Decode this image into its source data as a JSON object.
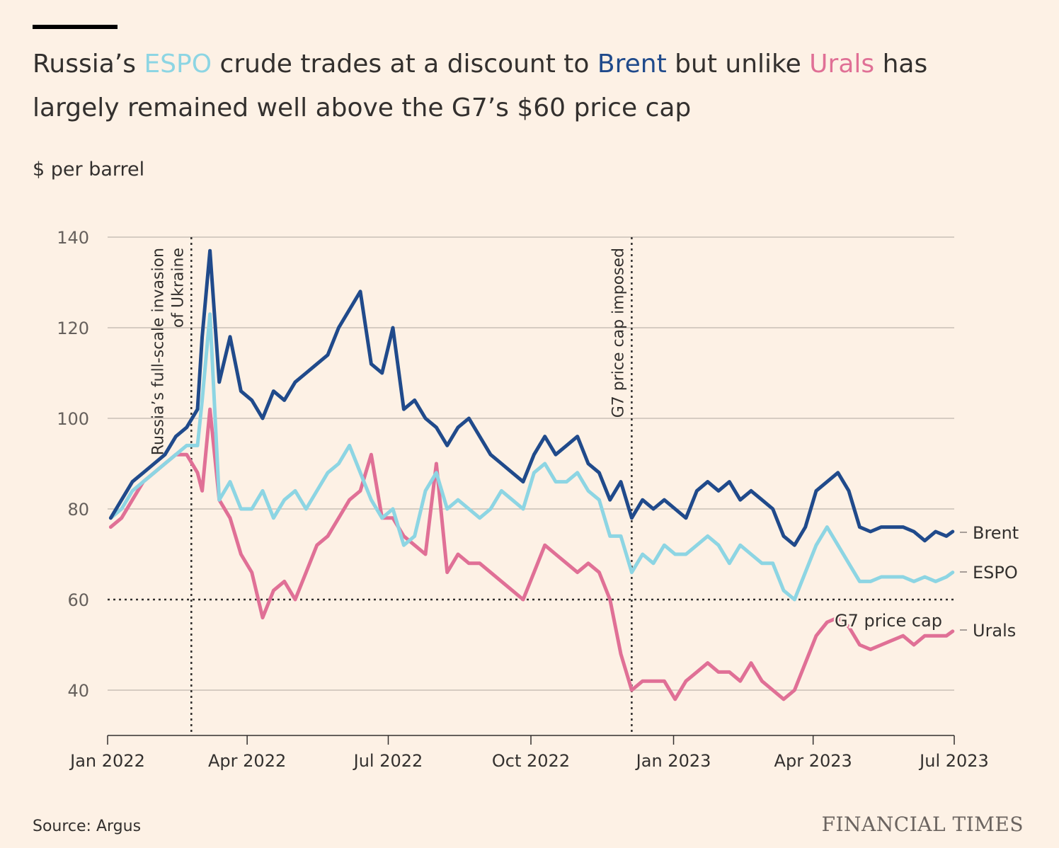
{
  "title": {
    "p1": "Russia’s ",
    "espo": "ESPO",
    "p2": " crude trades at a discount to ",
    "brent": "Brent",
    "p3": " but unlike ",
    "urals": "Urals",
    "p4": " has",
    "line2": "largely remained well above the G7’s $60 price cap"
  },
  "unit_label": "$ per barrel",
  "source": "Source: Argus",
  "brand": "FINANCIAL TIMES",
  "colors": {
    "background": "#fdf1e5",
    "brent": "#204a8b",
    "espo": "#8dd5e3",
    "urals": "#e07096",
    "text": "#33302e"
  },
  "chart_data": {
    "type": "line",
    "ylabel": "$ per barrel",
    "ylim": [
      30,
      140
    ],
    "yticks": [
      40,
      60,
      80,
      100,
      120,
      140
    ],
    "xlim": [
      "2022-01-01",
      "2023-07-01"
    ],
    "xticks": [
      {
        "date": "2022-01-01",
        "label": "Jan 2022"
      },
      {
        "date": "2022-04-01",
        "label": "Apr 2022"
      },
      {
        "date": "2022-07-01",
        "label": "Jul 2022"
      },
      {
        "date": "2022-10-01",
        "label": "Oct 2022"
      },
      {
        "date": "2023-01-01",
        "label": "Jan 2023"
      },
      {
        "date": "2023-04-01",
        "label": "Apr 2023"
      },
      {
        "date": "2023-07-01",
        "label": "Jul 2023"
      }
    ],
    "grid": true,
    "annotations": [
      {
        "date": "2022-02-24",
        "text_line1": "Russia’s full-scale invasion",
        "text_line2": "of Ukraine"
      },
      {
        "date": "2022-12-05",
        "text_line1": "G7 price cap imposed"
      }
    ],
    "reference_line": {
      "y": 60,
      "label": "G7 price cap"
    },
    "series": [
      {
        "name": "Brent",
        "x": [
          "2022-01-03",
          "2022-01-10",
          "2022-01-17",
          "2022-01-24",
          "2022-01-31",
          "2022-02-07",
          "2022-02-14",
          "2022-02-21",
          "2022-02-28",
          "2022-03-03",
          "2022-03-08",
          "2022-03-14",
          "2022-03-21",
          "2022-03-28",
          "2022-04-04",
          "2022-04-11",
          "2022-04-18",
          "2022-04-25",
          "2022-05-02",
          "2022-05-09",
          "2022-05-16",
          "2022-05-23",
          "2022-05-30",
          "2022-06-06",
          "2022-06-13",
          "2022-06-20",
          "2022-06-27",
          "2022-07-04",
          "2022-07-11",
          "2022-07-18",
          "2022-07-25",
          "2022-08-01",
          "2022-08-08",
          "2022-08-15",
          "2022-08-22",
          "2022-08-29",
          "2022-09-05",
          "2022-09-12",
          "2022-09-19",
          "2022-09-26",
          "2022-10-03",
          "2022-10-10",
          "2022-10-17",
          "2022-10-24",
          "2022-10-31",
          "2022-11-07",
          "2022-11-14",
          "2022-11-21",
          "2022-11-28",
          "2022-12-05",
          "2022-12-12",
          "2022-12-19",
          "2022-12-26",
          "2023-01-02",
          "2023-01-09",
          "2023-01-16",
          "2023-01-23",
          "2023-01-30",
          "2023-02-06",
          "2023-02-13",
          "2023-02-20",
          "2023-02-27",
          "2023-03-06",
          "2023-03-13",
          "2023-03-20",
          "2023-03-27",
          "2023-04-03",
          "2023-04-10",
          "2023-04-17",
          "2023-04-24",
          "2023-05-01",
          "2023-05-08",
          "2023-05-15",
          "2023-05-22",
          "2023-05-29",
          "2023-06-05",
          "2023-06-12",
          "2023-06-19",
          "2023-06-26",
          "2023-06-30"
        ],
        "values": [
          78,
          82,
          86,
          88,
          90,
          92,
          96,
          98,
          102,
          118,
          137,
          108,
          118,
          106,
          104,
          100,
          106,
          104,
          108,
          110,
          112,
          114,
          120,
          124,
          128,
          112,
          110,
          120,
          102,
          104,
          100,
          98,
          94,
          98,
          100,
          96,
          92,
          90,
          88,
          86,
          92,
          96,
          92,
          94,
          96,
          90,
          88,
          82,
          86,
          78,
          82,
          80,
          82,
          80,
          78,
          84,
          86,
          84,
          86,
          82,
          84,
          82,
          80,
          74,
          72,
          76,
          84,
          86,
          88,
          84,
          76,
          75,
          76,
          76,
          76,
          75,
          73,
          75,
          74,
          75
        ]
      },
      {
        "name": "ESPO",
        "x": [
          "2022-01-03",
          "2022-01-10",
          "2022-01-17",
          "2022-01-24",
          "2022-01-31",
          "2022-02-07",
          "2022-02-14",
          "2022-02-21",
          "2022-02-28",
          "2022-03-03",
          "2022-03-08",
          "2022-03-14",
          "2022-03-21",
          "2022-03-28",
          "2022-04-04",
          "2022-04-11",
          "2022-04-18",
          "2022-04-25",
          "2022-05-02",
          "2022-05-09",
          "2022-05-16",
          "2022-05-23",
          "2022-05-30",
          "2022-06-06",
          "2022-06-13",
          "2022-06-20",
          "2022-06-27",
          "2022-07-04",
          "2022-07-11",
          "2022-07-18",
          "2022-07-25",
          "2022-08-01",
          "2022-08-08",
          "2022-08-15",
          "2022-08-22",
          "2022-08-29",
          "2022-09-05",
          "2022-09-12",
          "2022-09-19",
          "2022-09-26",
          "2022-10-03",
          "2022-10-10",
          "2022-10-17",
          "2022-10-24",
          "2022-10-31",
          "2022-11-07",
          "2022-11-14",
          "2022-11-21",
          "2022-11-28",
          "2022-12-05",
          "2022-12-12",
          "2022-12-19",
          "2022-12-26",
          "2023-01-02",
          "2023-01-09",
          "2023-01-16",
          "2023-01-23",
          "2023-01-30",
          "2023-02-06",
          "2023-02-13",
          "2023-02-20",
          "2023-02-27",
          "2023-03-06",
          "2023-03-13",
          "2023-03-20",
          "2023-03-27",
          "2023-04-03",
          "2023-04-10",
          "2023-04-17",
          "2023-04-24",
          "2023-05-01",
          "2023-05-08",
          "2023-05-15",
          "2023-05-22",
          "2023-05-29",
          "2023-06-05",
          "2023-06-12",
          "2023-06-19",
          "2023-06-26",
          "2023-06-30"
        ],
        "values": [
          78,
          80,
          84,
          86,
          88,
          90,
          92,
          94,
          94,
          104,
          123,
          82,
          86,
          80,
          80,
          84,
          78,
          82,
          84,
          80,
          84,
          88,
          90,
          94,
          88,
          82,
          78,
          80,
          72,
          74,
          84,
          88,
          80,
          82,
          80,
          78,
          80,
          84,
          82,
          80,
          88,
          90,
          86,
          86,
          88,
          84,
          82,
          74,
          74,
          66,
          70,
          68,
          72,
          70,
          70,
          72,
          74,
          72,
          68,
          72,
          70,
          68,
          68,
          62,
          60,
          66,
          72,
          76,
          72,
          68,
          64,
          64,
          65,
          65,
          65,
          64,
          65,
          64,
          65,
          66
        ]
      },
      {
        "name": "Urals",
        "x": [
          "2022-01-03",
          "2022-01-10",
          "2022-01-17",
          "2022-01-24",
          "2022-01-31",
          "2022-02-07",
          "2022-02-14",
          "2022-02-21",
          "2022-02-28",
          "2022-03-03",
          "2022-03-08",
          "2022-03-14",
          "2022-03-21",
          "2022-03-28",
          "2022-04-04",
          "2022-04-11",
          "2022-04-18",
          "2022-04-25",
          "2022-05-02",
          "2022-05-09",
          "2022-05-16",
          "2022-05-23",
          "2022-05-30",
          "2022-06-06",
          "2022-06-13",
          "2022-06-20",
          "2022-06-27",
          "2022-07-04",
          "2022-07-11",
          "2022-07-18",
          "2022-07-25",
          "2022-08-01",
          "2022-08-08",
          "2022-08-15",
          "2022-08-22",
          "2022-08-29",
          "2022-09-05",
          "2022-09-12",
          "2022-09-19",
          "2022-09-26",
          "2022-10-03",
          "2022-10-10",
          "2022-10-17",
          "2022-10-24",
          "2022-10-31",
          "2022-11-07",
          "2022-11-14",
          "2022-11-21",
          "2022-11-28",
          "2022-12-05",
          "2022-12-12",
          "2022-12-19",
          "2022-12-26",
          "2023-01-02",
          "2023-01-09",
          "2023-01-16",
          "2023-01-23",
          "2023-01-30",
          "2023-02-06",
          "2023-02-13",
          "2023-02-20",
          "2023-02-27",
          "2023-03-06",
          "2023-03-13",
          "2023-03-20",
          "2023-03-27",
          "2023-04-03",
          "2023-04-10",
          "2023-04-17",
          "2023-04-24",
          "2023-05-01",
          "2023-05-08",
          "2023-05-15",
          "2023-05-22",
          "2023-05-29",
          "2023-06-05",
          "2023-06-12",
          "2023-06-19",
          "2023-06-26",
          "2023-06-30"
        ],
        "values": [
          76,
          78,
          82,
          86,
          88,
          90,
          92,
          92,
          88,
          84,
          102,
          82,
          78,
          70,
          66,
          56,
          62,
          64,
          60,
          66,
          72,
          74,
          78,
          82,
          84,
          92,
          78,
          78,
          74,
          72,
          70,
          90,
          66,
          70,
          68,
          68,
          66,
          64,
          62,
          60,
          66,
          72,
          70,
          68,
          66,
          68,
          66,
          60,
          48,
          40,
          42,
          42,
          42,
          38,
          42,
          44,
          46,
          44,
          44,
          42,
          46,
          42,
          40,
          38,
          40,
          46,
          52,
          55,
          56,
          54,
          50,
          49,
          50,
          51,
          52,
          50,
          52,
          52,
          52,
          53
        ]
      }
    ]
  }
}
